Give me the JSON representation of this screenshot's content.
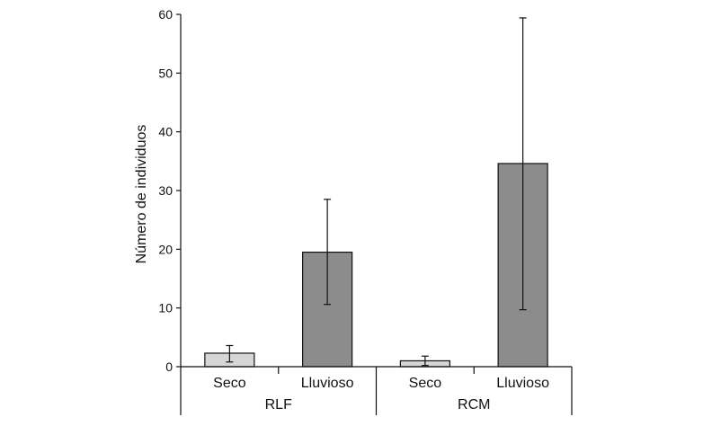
{
  "chart_data": {
    "type": "bar",
    "ylabel": "Número de individuos",
    "ylim": [
      0,
      60
    ],
    "yticks": [
      "0",
      "10",
      "20",
      "30",
      "40",
      "50",
      "60"
    ],
    "groups": [
      {
        "label": "RLF",
        "bars": [
          {
            "category": "Seco",
            "value": 2.3,
            "err_low": 0.8,
            "err_high": 3.6,
            "color": "#d6d6d6"
          },
          {
            "category": "Lluvioso",
            "value": 19.5,
            "err_low": 10.6,
            "err_high": 28.5,
            "color": "#8c8c8c"
          }
        ]
      },
      {
        "label": "RCM",
        "bars": [
          {
            "category": "Seco",
            "value": 1.0,
            "err_low": 0.2,
            "err_high": 1.8,
            "color": "#d6d6d6"
          },
          {
            "category": "Lluvioso",
            "value": 34.6,
            "err_low": 9.7,
            "err_high": 59.4,
            "color": "#8c8c8c"
          }
        ]
      }
    ],
    "grid": false,
    "legend": "none"
  }
}
